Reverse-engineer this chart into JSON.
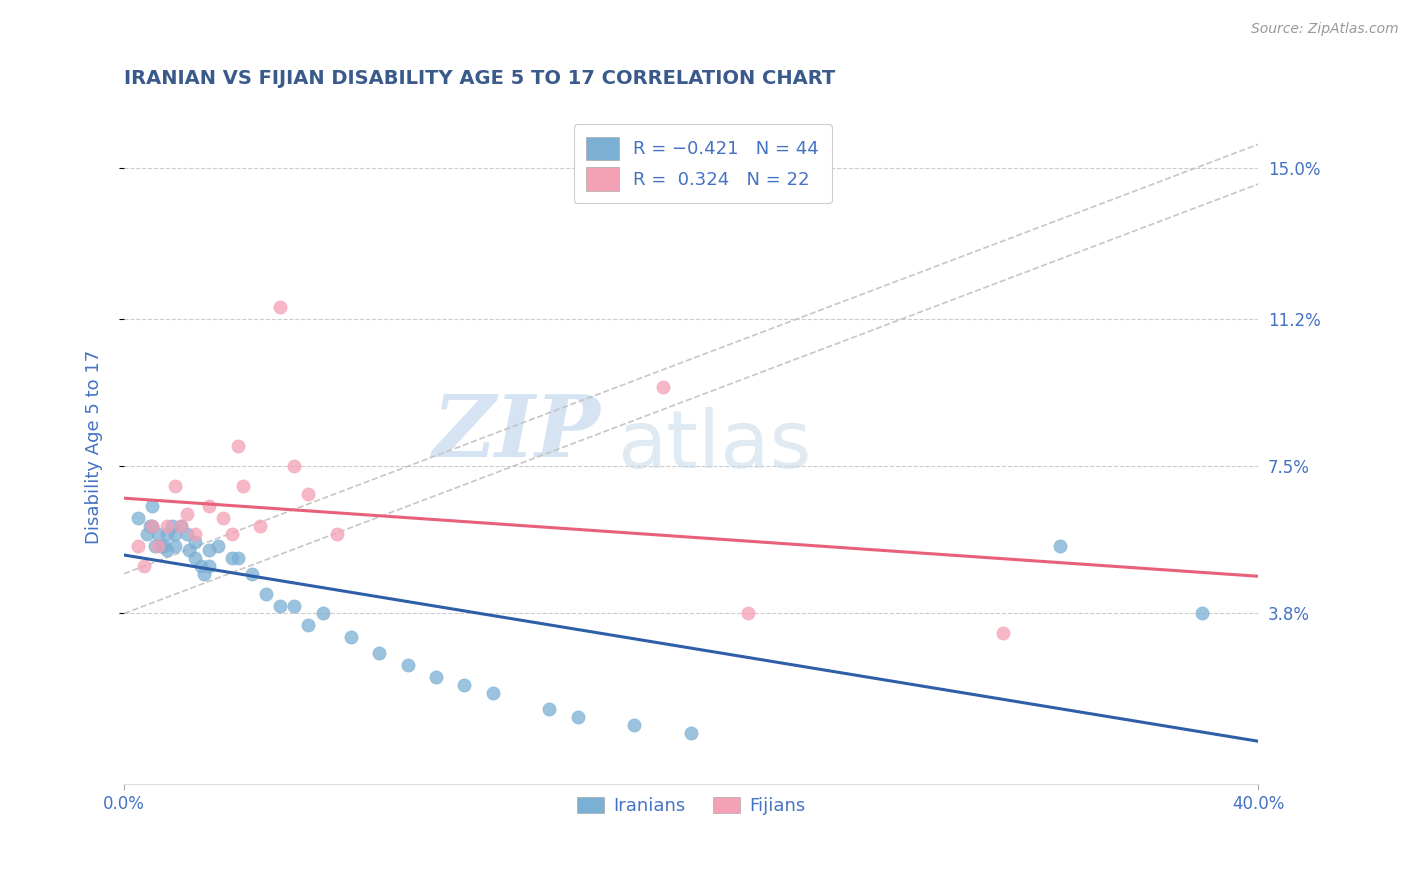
{
  "title": "IRANIAN VS FIJIAN DISABILITY AGE 5 TO 17 CORRELATION CHART",
  "source": "Source: ZipAtlas.com",
  "ylabel": "Disability Age 5 to 17",
  "xlim": [
    0.0,
    0.4
  ],
  "ylim": [
    -0.005,
    0.165
  ],
  "xticks": [
    0.0,
    0.4
  ],
  "xtick_labels": [
    "0.0%",
    "40.0%"
  ],
  "ytick_labels": [
    "3.8%",
    "7.5%",
    "11.2%",
    "15.0%"
  ],
  "ytick_vals": [
    0.038,
    0.075,
    0.112,
    0.15
  ],
  "title_color": "#3a5a8c",
  "axis_color": "#4472c4",
  "grid_color": "#cccccc",
  "watermark_zip": "ZIP",
  "watermark_atlas": "atlas",
  "iranian_color": "#7bafd4",
  "fijian_color": "#f4a0b5",
  "iranian_trend_color": "#2e5ea8",
  "fijian_trend_color": "#e8607a",
  "conf_band_color": "#c0c0c0",
  "iranian_x": [
    0.005,
    0.008,
    0.009,
    0.01,
    0.01,
    0.011,
    0.012,
    0.013,
    0.014,
    0.015,
    0.015,
    0.017,
    0.018,
    0.018,
    0.02,
    0.022,
    0.023,
    0.025,
    0.025,
    0.027,
    0.028,
    0.03,
    0.03,
    0.033,
    0.038,
    0.04,
    0.045,
    0.05,
    0.055,
    0.06,
    0.065,
    0.07,
    0.08,
    0.09,
    0.1,
    0.11,
    0.12,
    0.13,
    0.15,
    0.16,
    0.18,
    0.2,
    0.33,
    0.38
  ],
  "iranian_y": [
    0.062,
    0.058,
    0.06,
    0.065,
    0.06,
    0.055,
    0.058,
    0.055,
    0.055,
    0.058,
    0.054,
    0.06,
    0.058,
    0.055,
    0.06,
    0.058,
    0.054,
    0.056,
    0.052,
    0.05,
    0.048,
    0.054,
    0.05,
    0.055,
    0.052,
    0.052,
    0.048,
    0.043,
    0.04,
    0.04,
    0.035,
    0.038,
    0.032,
    0.028,
    0.025,
    0.022,
    0.02,
    0.018,
    0.014,
    0.012,
    0.01,
    0.008,
    0.055,
    0.038
  ],
  "fijian_x": [
    0.005,
    0.007,
    0.01,
    0.012,
    0.015,
    0.018,
    0.02,
    0.022,
    0.025,
    0.03,
    0.035,
    0.038,
    0.04,
    0.042,
    0.048,
    0.055,
    0.06,
    0.065,
    0.075,
    0.19,
    0.22,
    0.31
  ],
  "fijian_y": [
    0.055,
    0.05,
    0.06,
    0.055,
    0.06,
    0.07,
    0.06,
    0.063,
    0.058,
    0.065,
    0.062,
    0.058,
    0.08,
    0.07,
    0.06,
    0.115,
    0.075,
    0.068,
    0.058,
    0.095,
    0.038,
    0.033
  ],
  "conf_line1_intercept": 0.048,
  "conf_line1_slope": 0.27,
  "conf_line2_intercept": 0.038,
  "conf_line2_slope": 0.27
}
